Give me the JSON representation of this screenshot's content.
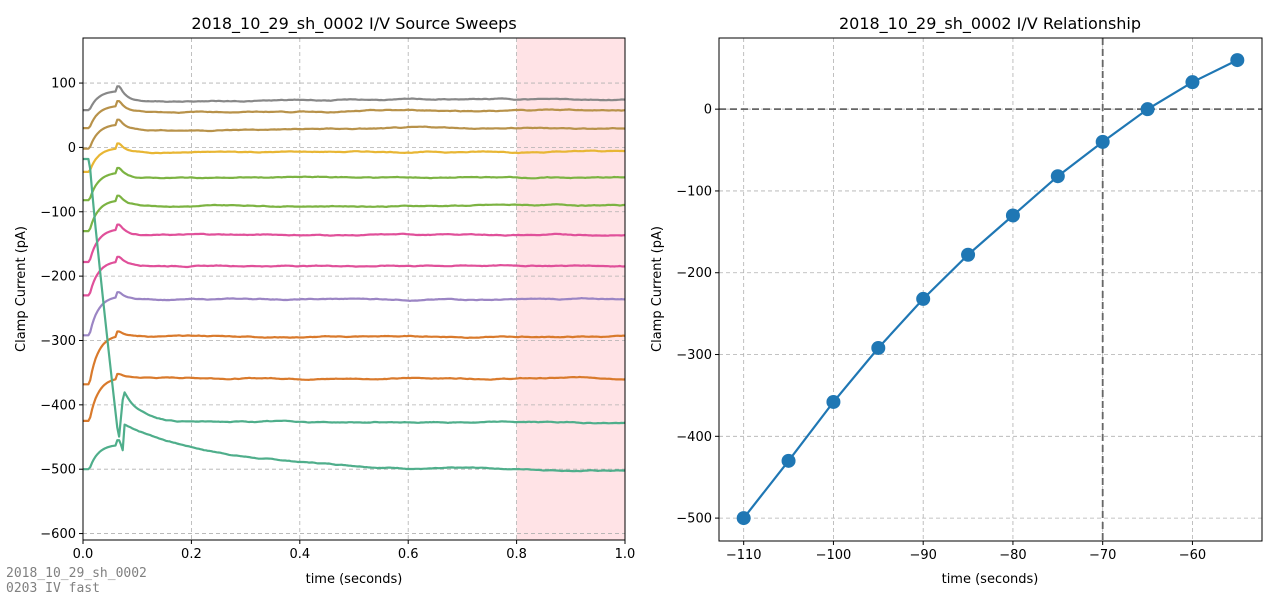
{
  "footer": {
    "line1": "2018_10_29_sh_0002",
    "line2": "0203 IV fast"
  },
  "chart_data": [
    {
      "type": "line",
      "title": "2018_10_29_sh_0002 I/V Source Sweeps",
      "xlabel": "time (seconds)",
      "ylabel": "Clamp Current (pA)",
      "xlim": [
        0,
        1.0
      ],
      "ylim": [
        -610,
        170
      ],
      "xticks": [
        0.0,
        0.2,
        0.4,
        0.6,
        0.8,
        1.0
      ],
      "yticks": [
        -600,
        -500,
        -400,
        -300,
        -200,
        -100,
        0,
        100
      ],
      "grid": true,
      "highlight_span": {
        "x": [
          0.8,
          1.0
        ],
        "color": "#ffe3e6"
      },
      "series": [
        {
          "color": "#4fae8b",
          "start": -500,
          "peak": -455,
          "steady": -498,
          "end_drift": -4
        },
        {
          "color": "#d97a2c",
          "start": -425,
          "peak": -352,
          "steady": -358,
          "end_drift": 0
        },
        {
          "color": "#d97a2c",
          "start": -368,
          "peak": -286,
          "steady": -294,
          "end_drift": 0
        },
        {
          "color": "#9b85c4",
          "start": -292,
          "peak": -225,
          "steady": -236,
          "end_drift": 0
        },
        {
          "color": "#e0509a",
          "start": -230,
          "peak": -170,
          "steady": -183,
          "end_drift": 0
        },
        {
          "color": "#e0509a",
          "start": -178,
          "peak": -120,
          "steady": -136,
          "end_drift": 0
        },
        {
          "color": "#7cb342",
          "start": -130,
          "peak": -75,
          "steady": -90,
          "end_drift": 0
        },
        {
          "color": "#7cb342",
          "start": -82,
          "peak": -32,
          "steady": -47,
          "end_drift": 0
        },
        {
          "color": "#e8b634",
          "start": -38,
          "peak": 6,
          "steady": -8,
          "end_drift": 2
        },
        {
          "color": "#b8924a",
          "start": -2,
          "peak": 43,
          "steady": 27,
          "end_drift": 3
        },
        {
          "color": "#b8924a",
          "start": 30,
          "peak": 72,
          "steady": 55,
          "end_drift": 3
        },
        {
          "color": "#888888",
          "start": 58,
          "peak": 95,
          "steady": 72,
          "end_drift": 3
        },
        {
          "color": "#4fae8b",
          "start": -18,
          "peak": -455,
          "steady": -426,
          "end_drift": -2,
          "transient": true
        }
      ]
    },
    {
      "type": "line",
      "title": "2018_10_29_sh_0002 I/V Relationship",
      "xlabel": "time (seconds)",
      "ylabel": "Clamp Current (pA)",
      "xlim": [
        -112.75,
        -52.25
      ],
      "ylim": [
        -528,
        87
      ],
      "xticks": [
        -110,
        -100,
        -90,
        -80,
        -70,
        -60
      ],
      "yticks": [
        -500,
        -400,
        -300,
        -200,
        -100,
        0
      ],
      "grid": true,
      "reference_lines": {
        "x": -70,
        "y": 0
      },
      "series": [
        {
          "color": "#1f77b4",
          "x": [
            -110,
            -105,
            -100,
            -95,
            -90,
            -85,
            -80,
            -75,
            -70,
            -65,
            -60,
            -55
          ],
          "y": [
            -500,
            -430,
            -358,
            -292,
            -232,
            -178,
            -130,
            -82,
            -40,
            0,
            33,
            60
          ]
        }
      ]
    }
  ]
}
